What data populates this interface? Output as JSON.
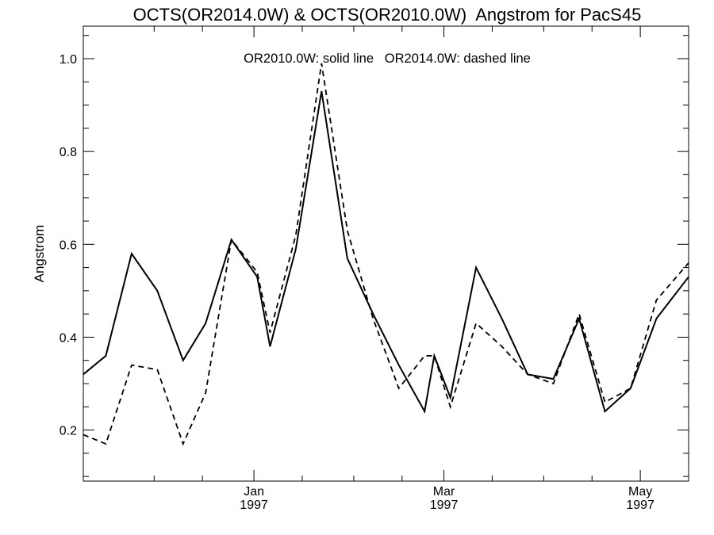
{
  "chart_data": {
    "type": "line",
    "title": "OCTS(OR2014.0W) & OCTS(OR2010.0W)  Angstrom for PacS45",
    "annotation": "OR2010.0W: solid line   OR2014.0W: dashed line",
    "ylabel": "Angstrom",
    "xlabel": "",
    "ylim": [
      0.09,
      1.07
    ],
    "y_ticks": [
      0.2,
      0.4,
      0.6,
      0.8,
      1.0
    ],
    "y_tick_labels": [
      "0.2",
      "0.4",
      "0.6",
      "0.8",
      "1.0"
    ],
    "x_range": [
      "1996-11-09",
      "1997-05-16"
    ],
    "x_tick_labels": [
      {
        "date": "1997-01-01",
        "month": "Jan",
        "year": "1997"
      },
      {
        "date": "1997-03-01",
        "month": "Mar",
        "year": "1997"
      },
      {
        "date": "1997-05-01",
        "month": "May",
        "year": "1997"
      }
    ],
    "grid": false,
    "legend": "none",
    "colors": {
      "line": "#000000",
      "background": "#ffffff"
    },
    "series": [
      {
        "name": "OR2010.0W",
        "style": "solid",
        "x": [
          "1996-11-09",
          "1996-11-16",
          "1996-11-24",
          "1996-12-02",
          "1996-12-10",
          "1996-12-17",
          "1996-12-25",
          "1997-01-02",
          "1997-01-06",
          "1997-01-14",
          "1997-01-22",
          "1997-01-30",
          "1997-02-07",
          "1997-02-15",
          "1997-02-23",
          "1997-02-26",
          "1997-03-03",
          "1997-03-11",
          "1997-03-19",
          "1997-03-27",
          "1997-04-04",
          "1997-04-12",
          "1997-04-20",
          "1997-04-28",
          "1997-05-06",
          "1997-05-16"
        ],
        "values": [
          0.32,
          0.36,
          0.58,
          0.5,
          0.35,
          0.43,
          0.61,
          0.53,
          0.38,
          0.59,
          0.93,
          0.57,
          0.45,
          0.34,
          0.24,
          0.36,
          0.27,
          0.55,
          0.44,
          0.32,
          0.31,
          0.44,
          0.24,
          0.29,
          0.44,
          0.53
        ]
      },
      {
        "name": "OR2014.0W",
        "style": "dashed",
        "x": [
          "1996-11-09",
          "1996-11-16",
          "1996-11-24",
          "1996-12-02",
          "1996-12-10",
          "1996-12-17",
          "1996-12-25",
          "1997-01-02",
          "1997-01-06",
          "1997-01-14",
          "1997-01-22",
          "1997-01-30",
          "1997-02-07",
          "1997-02-15",
          "1997-02-23",
          "1997-02-26",
          "1997-03-03",
          "1997-03-11",
          "1997-03-19",
          "1997-03-27",
          "1997-04-04",
          "1997-04-12",
          "1997-04-20",
          "1997-04-28",
          "1997-05-06",
          "1997-05-16"
        ],
        "values": [
          0.19,
          0.17,
          0.34,
          0.33,
          0.17,
          0.28,
          0.61,
          0.54,
          0.41,
          0.62,
          0.99,
          0.63,
          0.44,
          0.29,
          0.36,
          0.36,
          0.25,
          0.43,
          0.38,
          0.32,
          0.3,
          0.45,
          0.26,
          0.29,
          0.48,
          0.56
        ]
      }
    ]
  }
}
